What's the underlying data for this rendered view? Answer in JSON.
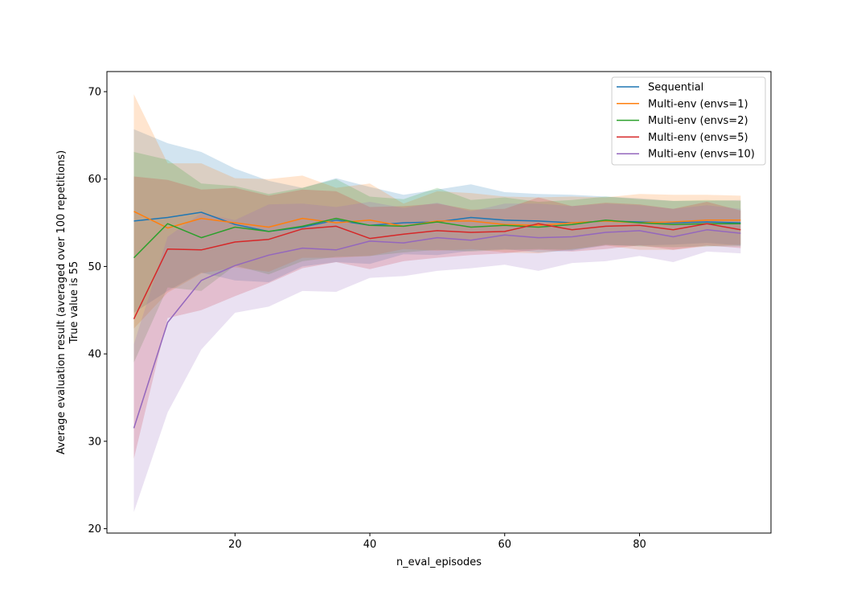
{
  "chart_data": {
    "type": "line",
    "title": "",
    "xlabel": "n_eval_episodes",
    "ylabel_lines": [
      "Average evaluation result (averaged over 100 repetitions)",
      "True value is 55"
    ],
    "xlim": [
      1.0,
      99.5
    ],
    "ylim": [
      19.5,
      72.3
    ],
    "xticks": [
      20,
      40,
      60,
      80
    ],
    "yticks": [
      20,
      30,
      40,
      50,
      60,
      70
    ],
    "grid": false,
    "legend_position": "top-right",
    "x": [
      5,
      10,
      15,
      20,
      25,
      30,
      35,
      40,
      45,
      50,
      55,
      60,
      65,
      70,
      75,
      80,
      85,
      90,
      95
    ],
    "series": [
      {
        "name": "Sequential",
        "color": "#1f77b4",
        "values": [
          55.2,
          55.6,
          56.2,
          54.8,
          54.0,
          54.5,
          55.3,
          54.7,
          55.0,
          55.1,
          55.6,
          55.3,
          55.2,
          55.0,
          55.2,
          55.1,
          55.0,
          55.1,
          55.0
        ],
        "lower": [
          44.7,
          47.2,
          49.3,
          48.4,
          48.2,
          50.0,
          50.5,
          50.3,
          51.4,
          51.3,
          51.8,
          52.0,
          51.6,
          51.8,
          52.4,
          52.4,
          52.5,
          52.7,
          52.4
        ],
        "upper": [
          65.7,
          64.1,
          63.1,
          61.2,
          59.8,
          59.0,
          60.1,
          59.1,
          58.2,
          58.8,
          59.4,
          58.5,
          58.3,
          58.2,
          58.0,
          57.8,
          57.5,
          57.5,
          57.6
        ]
      },
      {
        "name": "Multi-env (envs=1)",
        "color": "#ff7f0e",
        "values": [
          56.3,
          54.4,
          55.5,
          55.0,
          54.5,
          55.5,
          55.0,
          55.3,
          54.6,
          55.2,
          55.2,
          54.8,
          54.7,
          55.0,
          55.2,
          55.0,
          55.1,
          55.3,
          55.3
        ],
        "lower": [
          42.9,
          47.0,
          49.2,
          49.9,
          49.4,
          51.0,
          51.0,
          51.2,
          52.0,
          51.8,
          52.0,
          51.6,
          51.5,
          52.0,
          52.4,
          51.9,
          51.9,
          52.3,
          52.5
        ],
        "upper": [
          69.7,
          61.8,
          61.8,
          60.1,
          60.0,
          60.4,
          59.0,
          59.5,
          57.2,
          58.6,
          58.4,
          58.0,
          57.9,
          58.0,
          57.9,
          58.3,
          58.2,
          58.2,
          58.1
        ]
      },
      {
        "name": "Multi-env (envs=2)",
        "color": "#2ca02c",
        "values": [
          51.0,
          54.9,
          53.3,
          54.5,
          54.0,
          54.6,
          55.5,
          54.7,
          54.6,
          55.1,
          54.5,
          54.7,
          54.5,
          54.8,
          55.3,
          55.0,
          54.8,
          54.9,
          54.9
        ],
        "lower": [
          39.0,
          47.6,
          47.2,
          50.1,
          49.1,
          50.6,
          51.1,
          51.2,
          51.6,
          51.9,
          51.7,
          51.9,
          52.0,
          51.9,
          52.5,
          52.3,
          52.2,
          52.3,
          52.3
        ],
        "upper": [
          63.1,
          62.2,
          59.5,
          59.2,
          58.3,
          59.0,
          60.0,
          58.0,
          57.7,
          59.0,
          57.6,
          57.9,
          57.4,
          57.6,
          58.0,
          57.7,
          57.5,
          57.6,
          57.5
        ]
      },
      {
        "name": "Multi-env (envs=5)",
        "color": "#d62728",
        "values": [
          44.0,
          52.0,
          51.9,
          52.8,
          53.1,
          54.3,
          54.6,
          53.2,
          53.7,
          54.1,
          53.9,
          54.0,
          54.9,
          54.2,
          54.6,
          54.7,
          54.2,
          54.9,
          54.2
        ],
        "lower": [
          28.0,
          44.1,
          45.0,
          46.6,
          48.1,
          49.8,
          50.5,
          49.7,
          50.6,
          51.0,
          51.3,
          51.5,
          51.9,
          51.7,
          52.0,
          52.4,
          51.9,
          52.4,
          52.1
        ],
        "upper": [
          60.3,
          59.9,
          58.8,
          59.0,
          58.1,
          58.8,
          58.6,
          56.8,
          56.9,
          57.2,
          56.5,
          56.6,
          57.9,
          56.9,
          57.3,
          57.1,
          56.6,
          57.4,
          56.4
        ]
      },
      {
        "name": "Multi-env (envs=10)",
        "color": "#9467bd",
        "values": [
          31.5,
          43.6,
          48.4,
          50.1,
          51.3,
          52.1,
          51.9,
          52.9,
          52.7,
          53.3,
          53.0,
          53.6,
          53.3,
          53.4,
          53.9,
          54.1,
          53.4,
          54.2,
          53.8
        ],
        "lower": [
          21.9,
          33.3,
          40.5,
          44.7,
          45.4,
          47.2,
          47.1,
          48.7,
          48.9,
          49.5,
          49.8,
          50.2,
          49.5,
          50.4,
          50.6,
          51.2,
          50.5,
          51.7,
          51.5
        ],
        "upper": [
          41.1,
          53.4,
          56.1,
          55.3,
          57.1,
          57.2,
          56.8,
          57.4,
          56.7,
          57.3,
          56.3,
          57.2,
          57.2,
          56.9,
          57.2,
          57.0,
          56.6,
          57.0,
          56.6
        ]
      }
    ]
  }
}
